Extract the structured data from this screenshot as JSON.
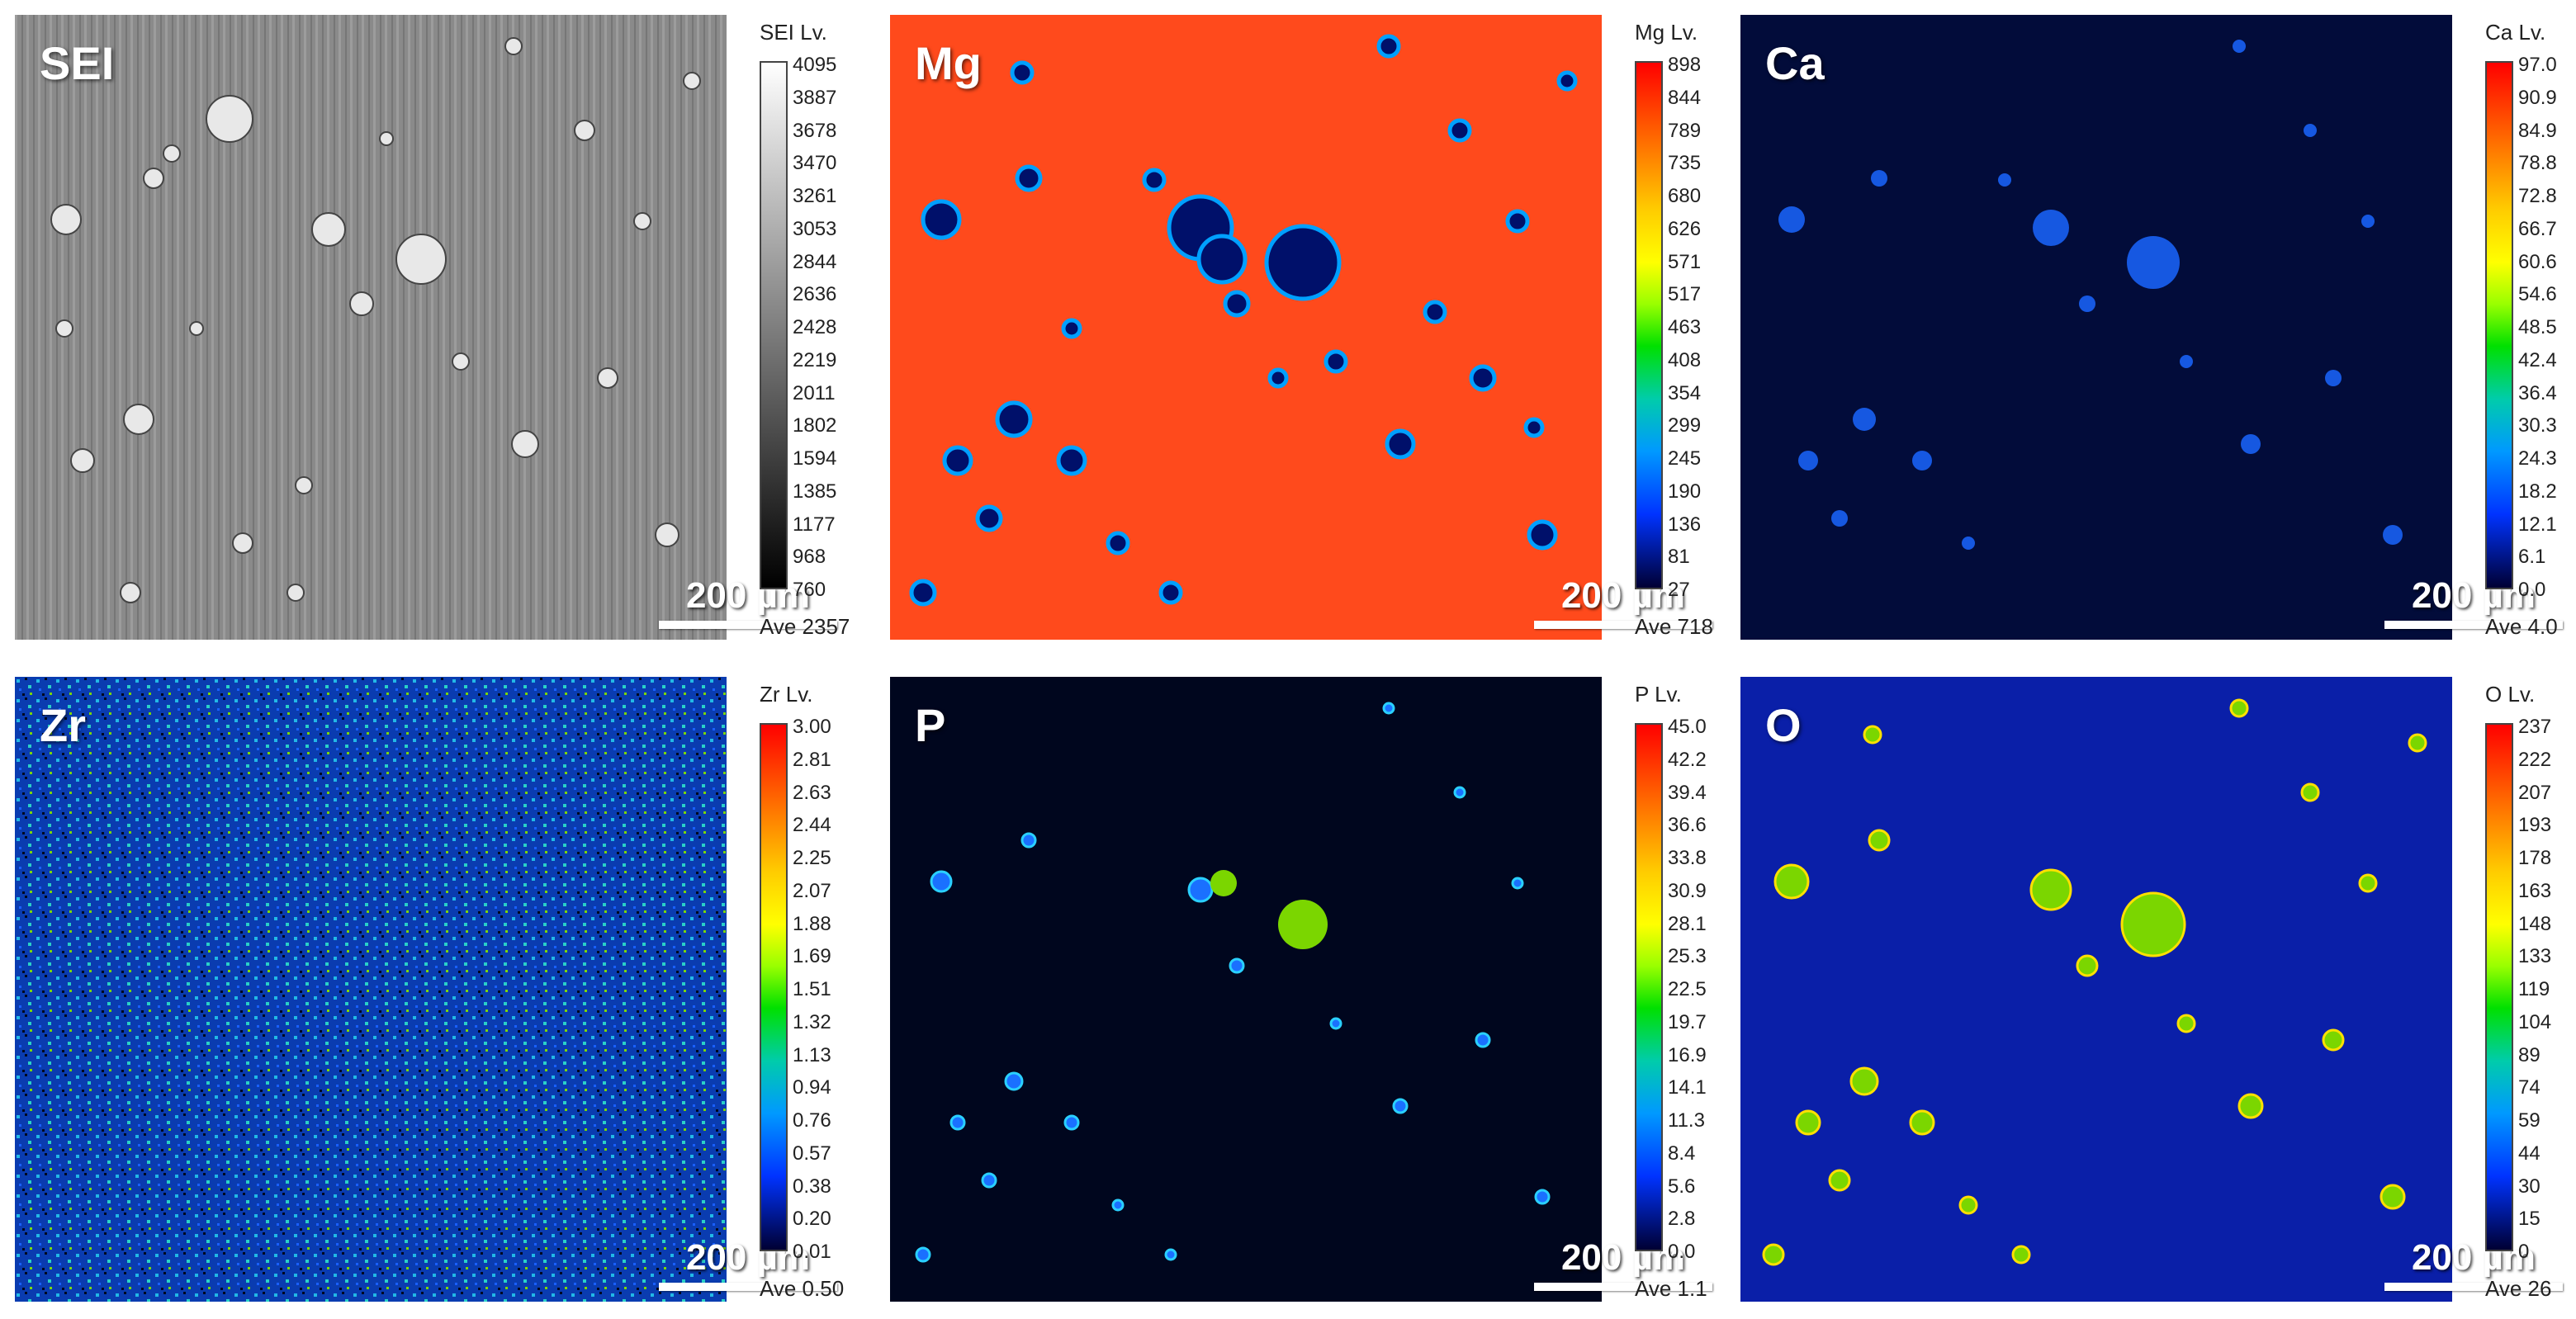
{
  "panels": [
    {
      "label": "SEI",
      "legend_title": "SEI Lv.",
      "ticks": [
        "4095",
        "3887",
        "3678",
        "3470",
        "3261",
        "3053",
        "2844",
        "2636",
        "2428",
        "2219",
        "2011",
        "1802",
        "1594",
        "1385",
        "1177",
        "968",
        "760"
      ],
      "ave": "Ave 2357",
      "scale": "200 µm",
      "colormap": "gray"
    },
    {
      "label": "Mg",
      "legend_title": "Mg Lv.",
      "ticks": [
        "898",
        "844",
        "789",
        "735",
        "680",
        "626",
        "571",
        "517",
        "463",
        "408",
        "354",
        "299",
        "245",
        "190",
        "136",
        "81",
        "27"
      ],
      "ave": "Ave 718",
      "scale": "200 µm",
      "colormap": "jet"
    },
    {
      "label": "Ca",
      "legend_title": "Ca Lv.",
      "ticks": [
        "97.0",
        "90.9",
        "84.9",
        "78.8",
        "72.8",
        "66.7",
        "60.6",
        "54.6",
        "48.5",
        "42.4",
        "36.4",
        "30.3",
        "24.3",
        "18.2",
        "12.1",
        "6.1",
        "0.0"
      ],
      "ave": "Ave 4.0",
      "scale": "200 µm",
      "colormap": "jet"
    },
    {
      "label": "Zr",
      "legend_title": "Zr Lv.",
      "ticks": [
        "3.00",
        "2.81",
        "2.63",
        "2.44",
        "2.25",
        "2.07",
        "1.88",
        "1.69",
        "1.51",
        "1.32",
        "1.13",
        "0.94",
        "0.76",
        "0.57",
        "0.38",
        "0.20",
        "0.01"
      ],
      "ave": "Ave 0.50",
      "scale": "200 µm",
      "colormap": "jet"
    },
    {
      "label": "P",
      "legend_title": "P Lv.",
      "ticks": [
        "45.0",
        "42.2",
        "39.4",
        "36.6",
        "33.8",
        "30.9",
        "28.1",
        "25.3",
        "22.5",
        "19.7",
        "16.9",
        "14.1",
        "11.3",
        "8.4",
        "5.6",
        "2.8",
        "0.0"
      ],
      "ave": "Ave 1.1",
      "scale": "200 µm",
      "colormap": "jet"
    },
    {
      "label": "O",
      "legend_title": "O Lv.",
      "ticks": [
        "237",
        "222",
        "207",
        "193",
        "178",
        "163",
        "148",
        "133",
        "119",
        "104",
        "89",
        "74",
        "59",
        "44",
        "30",
        "15",
        "0"
      ],
      "ave": "Ave 26",
      "scale": "200 µm",
      "colormap": "jet"
    }
  ],
  "colors": {
    "mg_background": "#ff4a1c",
    "particle_dark": "#00106a",
    "deep_blue": "#020c3a",
    "royal_blue": "#0a1fa8",
    "particle_green": "#7bd600",
    "particle_yellow": "#ffe000"
  }
}
